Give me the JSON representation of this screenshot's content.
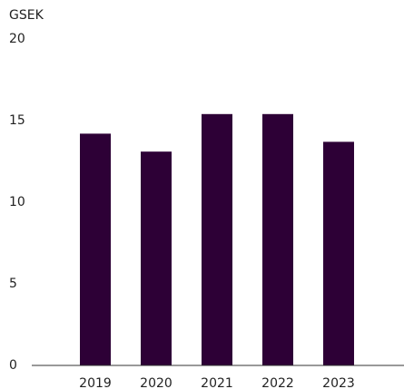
{
  "chart_data": {
    "type": "bar",
    "y_label": "GSEK",
    "categories": [
      "2019",
      "2020",
      "2021",
      "2022",
      "2023"
    ],
    "values": [
      14.2,
      13.1,
      15.4,
      15.4,
      13.7
    ],
    "color": "#2d0036",
    "ylim": [
      0,
      20
    ],
    "yticks": [
      0,
      5,
      10,
      15,
      20
    ],
    "grid": false
  }
}
